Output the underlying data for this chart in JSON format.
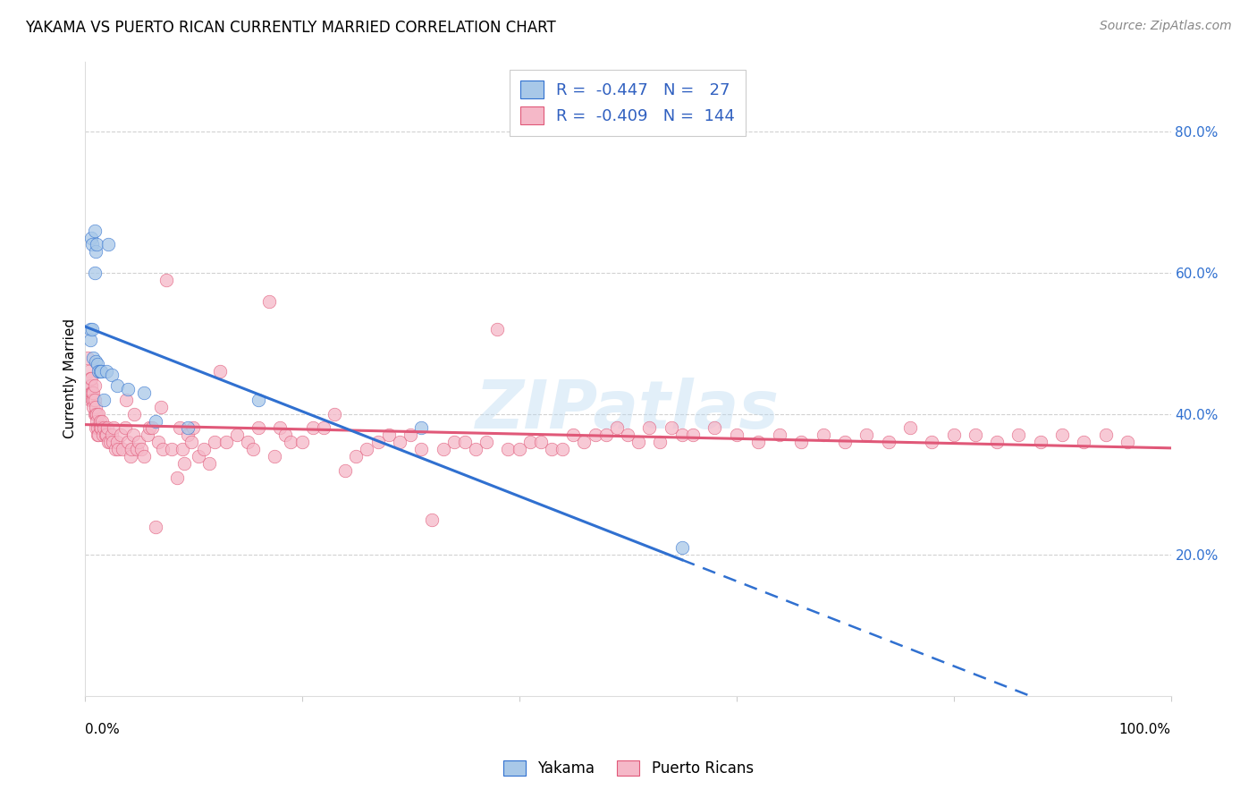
{
  "title": "YAKAMA VS PUERTO RICAN CURRENTLY MARRIED CORRELATION CHART",
  "source": "Source: ZipAtlas.com",
  "ylabel": "Currently Married",
  "legend_r1": "R = -0.447",
  "legend_n1": "N =  27",
  "legend_r2": "R = -0.409",
  "legend_n2": "N = 144",
  "yakama_color": "#a8c8e8",
  "puerto_rican_color": "#f5b8c8",
  "trendline_yakama_color": "#3070d0",
  "trendline_pr_color": "#e05878",
  "legend_text_color": "#3060c0",
  "background_color": "#ffffff",
  "grid_color": "#cccccc",
  "title_fontsize": 12,
  "source_fontsize": 10,
  "yakama_points": [
    [
      0.5,
      52.0
    ],
    [
      0.5,
      50.5
    ],
    [
      0.6,
      65.0
    ],
    [
      0.7,
      52.0
    ],
    [
      0.7,
      64.0
    ],
    [
      0.8,
      48.0
    ],
    [
      0.9,
      66.0
    ],
    [
      0.9,
      60.0
    ],
    [
      1.0,
      47.5
    ],
    [
      1.0,
      63.0
    ],
    [
      1.1,
      64.0
    ],
    [
      1.2,
      47.0
    ],
    [
      1.3,
      46.0
    ],
    [
      1.4,
      46.0
    ],
    [
      1.5,
      46.0
    ],
    [
      1.8,
      42.0
    ],
    [
      2.0,
      46.0
    ],
    [
      2.2,
      64.0
    ],
    [
      2.5,
      45.5
    ],
    [
      3.0,
      44.0
    ],
    [
      4.0,
      43.5
    ],
    [
      5.5,
      43.0
    ],
    [
      6.5,
      39.0
    ],
    [
      9.5,
      38.0
    ],
    [
      16.0,
      42.0
    ],
    [
      31.0,
      38.0
    ],
    [
      55.0,
      21.0
    ]
  ],
  "puerto_rican_points": [
    [
      0.3,
      48.0
    ],
    [
      0.4,
      44.0
    ],
    [
      0.4,
      46.0
    ],
    [
      0.5,
      42.0
    ],
    [
      0.5,
      44.0
    ],
    [
      0.5,
      45.0
    ],
    [
      0.6,
      44.0
    ],
    [
      0.6,
      45.0
    ],
    [
      0.6,
      43.0
    ],
    [
      0.7,
      43.0
    ],
    [
      0.7,
      42.0
    ],
    [
      0.8,
      42.0
    ],
    [
      0.8,
      43.0
    ],
    [
      0.8,
      41.0
    ],
    [
      0.9,
      40.0
    ],
    [
      0.9,
      44.0
    ],
    [
      0.9,
      42.0
    ],
    [
      1.0,
      40.0
    ],
    [
      1.0,
      38.0
    ],
    [
      1.0,
      41.0
    ],
    [
      1.1,
      40.0
    ],
    [
      1.1,
      39.0
    ],
    [
      1.2,
      37.0
    ],
    [
      1.2,
      38.0
    ],
    [
      1.3,
      40.0
    ],
    [
      1.3,
      37.0
    ],
    [
      1.4,
      39.0
    ],
    [
      1.4,
      38.0
    ],
    [
      1.5,
      38.0
    ],
    [
      1.6,
      39.0
    ],
    [
      1.7,
      37.0
    ],
    [
      1.8,
      38.0
    ],
    [
      1.9,
      37.0
    ],
    [
      2.0,
      37.0
    ],
    [
      2.1,
      38.0
    ],
    [
      2.2,
      36.0
    ],
    [
      2.3,
      36.0
    ],
    [
      2.5,
      37.0
    ],
    [
      2.6,
      36.0
    ],
    [
      2.7,
      38.0
    ],
    [
      2.8,
      35.0
    ],
    [
      3.0,
      36.0
    ],
    [
      3.1,
      35.0
    ],
    [
      3.3,
      37.0
    ],
    [
      3.5,
      35.0
    ],
    [
      3.7,
      38.0
    ],
    [
      3.8,
      42.0
    ],
    [
      4.0,
      36.0
    ],
    [
      4.2,
      34.0
    ],
    [
      4.3,
      35.0
    ],
    [
      4.5,
      37.0
    ],
    [
      4.6,
      40.0
    ],
    [
      4.8,
      35.0
    ],
    [
      5.0,
      36.0
    ],
    [
      5.2,
      35.0
    ],
    [
      5.5,
      34.0
    ],
    [
      5.8,
      37.0
    ],
    [
      6.0,
      38.0
    ],
    [
      6.2,
      38.0
    ],
    [
      6.5,
      24.0
    ],
    [
      6.8,
      36.0
    ],
    [
      7.0,
      41.0
    ],
    [
      7.2,
      35.0
    ],
    [
      7.5,
      59.0
    ],
    [
      8.0,
      35.0
    ],
    [
      8.5,
      31.0
    ],
    [
      8.8,
      38.0
    ],
    [
      9.0,
      35.0
    ],
    [
      9.2,
      33.0
    ],
    [
      9.5,
      37.0
    ],
    [
      9.8,
      36.0
    ],
    [
      10.0,
      38.0
    ],
    [
      10.5,
      34.0
    ],
    [
      11.0,
      35.0
    ],
    [
      11.5,
      33.0
    ],
    [
      12.0,
      36.0
    ],
    [
      12.5,
      46.0
    ],
    [
      13.0,
      36.0
    ],
    [
      14.0,
      37.0
    ],
    [
      15.0,
      36.0
    ],
    [
      15.5,
      35.0
    ],
    [
      16.0,
      38.0
    ],
    [
      17.0,
      56.0
    ],
    [
      17.5,
      34.0
    ],
    [
      18.0,
      38.0
    ],
    [
      18.5,
      37.0
    ],
    [
      19.0,
      36.0
    ],
    [
      20.0,
      36.0
    ],
    [
      21.0,
      38.0
    ],
    [
      22.0,
      38.0
    ],
    [
      23.0,
      40.0
    ],
    [
      24.0,
      32.0
    ],
    [
      25.0,
      34.0
    ],
    [
      26.0,
      35.0
    ],
    [
      27.0,
      36.0
    ],
    [
      28.0,
      37.0
    ],
    [
      29.0,
      36.0
    ],
    [
      30.0,
      37.0
    ],
    [
      31.0,
      35.0
    ],
    [
      32.0,
      25.0
    ],
    [
      33.0,
      35.0
    ],
    [
      34.0,
      36.0
    ],
    [
      35.0,
      36.0
    ],
    [
      36.0,
      35.0
    ],
    [
      37.0,
      36.0
    ],
    [
      38.0,
      52.0
    ],
    [
      39.0,
      35.0
    ],
    [
      40.0,
      35.0
    ],
    [
      41.0,
      36.0
    ],
    [
      42.0,
      36.0
    ],
    [
      43.0,
      35.0
    ],
    [
      44.0,
      35.0
    ],
    [
      45.0,
      37.0
    ],
    [
      46.0,
      36.0
    ],
    [
      47.0,
      37.0
    ],
    [
      48.0,
      37.0
    ],
    [
      49.0,
      38.0
    ],
    [
      50.0,
      37.0
    ],
    [
      51.0,
      36.0
    ],
    [
      52.0,
      38.0
    ],
    [
      53.0,
      36.0
    ],
    [
      54.0,
      38.0
    ],
    [
      55.0,
      37.0
    ],
    [
      56.0,
      37.0
    ],
    [
      58.0,
      38.0
    ],
    [
      60.0,
      37.0
    ],
    [
      62.0,
      36.0
    ],
    [
      64.0,
      37.0
    ],
    [
      66.0,
      36.0
    ],
    [
      68.0,
      37.0
    ],
    [
      70.0,
      36.0
    ],
    [
      72.0,
      37.0
    ],
    [
      74.0,
      36.0
    ],
    [
      76.0,
      38.0
    ],
    [
      78.0,
      36.0
    ],
    [
      80.0,
      37.0
    ],
    [
      82.0,
      37.0
    ],
    [
      84.0,
      36.0
    ],
    [
      86.0,
      37.0
    ],
    [
      88.0,
      36.0
    ],
    [
      90.0,
      37.0
    ],
    [
      92.0,
      36.0
    ],
    [
      94.0,
      37.0
    ],
    [
      96.0,
      36.0
    ]
  ],
  "xlim": [
    0.0,
    100.0
  ],
  "ylim": [
    0.0,
    90.0
  ],
  "ytick_labels_right": [
    "20.0%",
    "40.0%",
    "60.0%",
    "80.0%"
  ],
  "ytick_vals": [
    20.0,
    40.0,
    60.0,
    80.0
  ],
  "xtick_left_label": "0.0%",
  "xtick_right_label": "100.0%"
}
